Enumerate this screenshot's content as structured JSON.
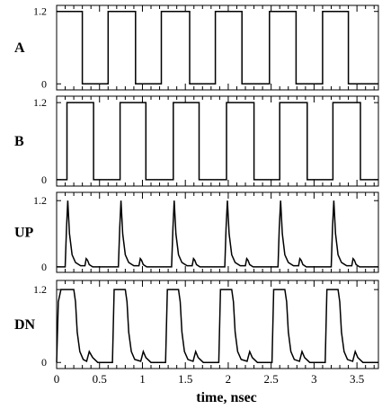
{
  "chart_data": {
    "type": "line",
    "xlabel": "time, nsec",
    "xlim": [
      0,
      3.75
    ],
    "x_ticks": [
      0,
      0.5,
      1,
      1.5,
      2,
      2.5,
      3,
      3.5
    ],
    "x_tick_labels": [
      "0",
      "0.5",
      "1",
      "1.5",
      "2",
      "2.5",
      "3",
      "3.5"
    ],
    "panels": [
      {
        "label": "A",
        "ylim": [
          -0.1,
          1.3
        ],
        "y_ticks": [
          0,
          1.2
        ],
        "y_tick_labels": [
          "0",
          "1.2"
        ],
        "series": [
          {
            "x": [
              0,
              0.3,
              0.3,
              0.6,
              0.6,
              0.92,
              0.92,
              1.22,
              1.22,
              1.55,
              1.55,
              1.85,
              1.85,
              2.16,
              2.16,
              2.48,
              2.48,
              2.79,
              2.79,
              3.1,
              3.1,
              3.4,
              3.4,
              3.75
            ],
            "y": [
              1.2,
              1.2,
              0,
              0,
              1.2,
              1.2,
              0,
              0,
              1.2,
              1.2,
              0,
              0,
              1.2,
              1.2,
              0,
              0,
              1.2,
              1.2,
              0,
              0,
              1.2,
              1.2,
              0,
              0
            ]
          }
        ]
      },
      {
        "label": "B",
        "ylim": [
          -0.1,
          1.3
        ],
        "y_ticks": [
          0,
          1.2
        ],
        "y_tick_labels": [
          "0",
          "1.2"
        ],
        "series": [
          {
            "x": [
              0,
              0.12,
              0.12,
              0.43,
              0.43,
              0.74,
              0.74,
              1.04,
              1.04,
              1.36,
              1.36,
              1.66,
              1.66,
              1.98,
              1.98,
              2.3,
              2.3,
              2.6,
              2.6,
              2.92,
              2.92,
              3.22,
              3.22,
              3.54,
              3.54,
              3.75
            ],
            "y": [
              0,
              0,
              1.2,
              1.2,
              0,
              0,
              1.2,
              1.2,
              0,
              0,
              1.2,
              1.2,
              0,
              0,
              1.2,
              1.2,
              0,
              0,
              1.2,
              1.2,
              0,
              0,
              1.2,
              1.2,
              0,
              0
            ]
          }
        ]
      },
      {
        "label": "UP",
        "ylim": [
          -0.1,
          1.35
        ],
        "y_ticks": [
          0,
          1.2
        ],
        "y_tick_labels": [
          "0",
          "1.2"
        ],
        "series": [
          {
            "x": [
              0,
              0.1,
              0.115,
              0.13,
              0.15,
              0.18,
              0.22,
              0.28,
              0.33,
              0.345,
              0.36,
              0.38,
              0.42,
              0.72,
              0.735,
              0.75,
              0.77,
              0.8,
              0.84,
              0.9,
              0.96,
              0.975,
              0.99,
              1.01,
              1.05,
              1.34,
              1.355,
              1.37,
              1.39,
              1.42,
              1.46,
              1.52,
              1.58,
              1.595,
              1.61,
              1.63,
              1.67,
              1.96,
              1.975,
              1.99,
              2.01,
              2.04,
              2.08,
              2.14,
              2.2,
              2.215,
              2.23,
              2.25,
              2.29,
              2.58,
              2.595,
              2.61,
              2.63,
              2.66,
              2.7,
              2.76,
              2.82,
              2.835,
              2.85,
              2.87,
              2.91,
              3.2,
              3.215,
              3.23,
              3.25,
              3.28,
              3.32,
              3.38,
              3.44,
              3.455,
              3.47,
              3.49,
              3.53,
              3.75
            ],
            "y": [
              0,
              0,
              0.7,
              1.2,
              0.6,
              0.22,
              0.08,
              0.02,
              0.02,
              0.15,
              0.12,
              0.04,
              0,
              0,
              0.7,
              1.2,
              0.6,
              0.22,
              0.08,
              0.02,
              0.02,
              0.15,
              0.12,
              0.04,
              0,
              0,
              0.7,
              1.2,
              0.6,
              0.22,
              0.08,
              0.02,
              0.02,
              0.15,
              0.12,
              0.04,
              0,
              0,
              0.7,
              1.2,
              0.6,
              0.22,
              0.08,
              0.02,
              0.02,
              0.15,
              0.12,
              0.04,
              0,
              0,
              0.7,
              1.2,
              0.6,
              0.22,
              0.08,
              0.02,
              0.02,
              0.15,
              0.12,
              0.04,
              0,
              0,
              0.7,
              1.2,
              0.6,
              0.22,
              0.08,
              0.02,
              0.02,
              0.15,
              0.12,
              0.04,
              0,
              0
            ]
          }
        ]
      },
      {
        "label": "DN",
        "ylim": [
          -0.1,
          1.35
        ],
        "y_ticks": [
          0,
          1.2
        ],
        "y_tick_labels": [
          "0",
          "1.2"
        ],
        "series": [
          {
            "x": [
              0,
              0.02,
              0.05,
              0.2,
              0.22,
              0.24,
              0.27,
              0.31,
              0.35,
              0.38,
              0.42,
              0.48,
              0.65,
              0.67,
              0.8,
              0.82,
              0.84,
              0.87,
              0.91,
              0.98,
              1.01,
              1.04,
              1.1,
              1.27,
              1.29,
              1.42,
              1.44,
              1.46,
              1.49,
              1.53,
              1.59,
              1.62,
              1.65,
              1.71,
              1.89,
              1.91,
              2.04,
              2.06,
              2.08,
              2.11,
              2.15,
              2.22,
              2.25,
              2.28,
              2.34,
              2.51,
              2.53,
              2.66,
              2.68,
              2.7,
              2.73,
              2.77,
              2.83,
              2.86,
              2.89,
              2.95,
              3.13,
              3.15,
              3.28,
              3.3,
              3.32,
              3.35,
              3.39,
              3.45,
              3.48,
              3.51,
              3.57,
              3.75
            ],
            "y": [
              0,
              1.0,
              1.2,
              1.2,
              1.0,
              0.5,
              0.18,
              0.05,
              0.02,
              0.18,
              0.08,
              0,
              0,
              1.2,
              1.2,
              1.0,
              0.5,
              0.18,
              0.05,
              0.02,
              0.18,
              0.08,
              0,
              0,
              1.2,
              1.2,
              1.0,
              0.5,
              0.18,
              0.05,
              0.02,
              0.18,
              0.08,
              0,
              0,
              1.2,
              1.2,
              1.0,
              0.5,
              0.18,
              0.05,
              0.02,
              0.18,
              0.08,
              0,
              0,
              1.2,
              1.2,
              1.0,
              0.5,
              0.18,
              0.05,
              0.02,
              0.18,
              0.08,
              0,
              0,
              1.2,
              1.2,
              1.0,
              0.5,
              0.18,
              0.05,
              0.02,
              0.18,
              0.08,
              0,
              0
            ]
          }
        ]
      }
    ]
  }
}
